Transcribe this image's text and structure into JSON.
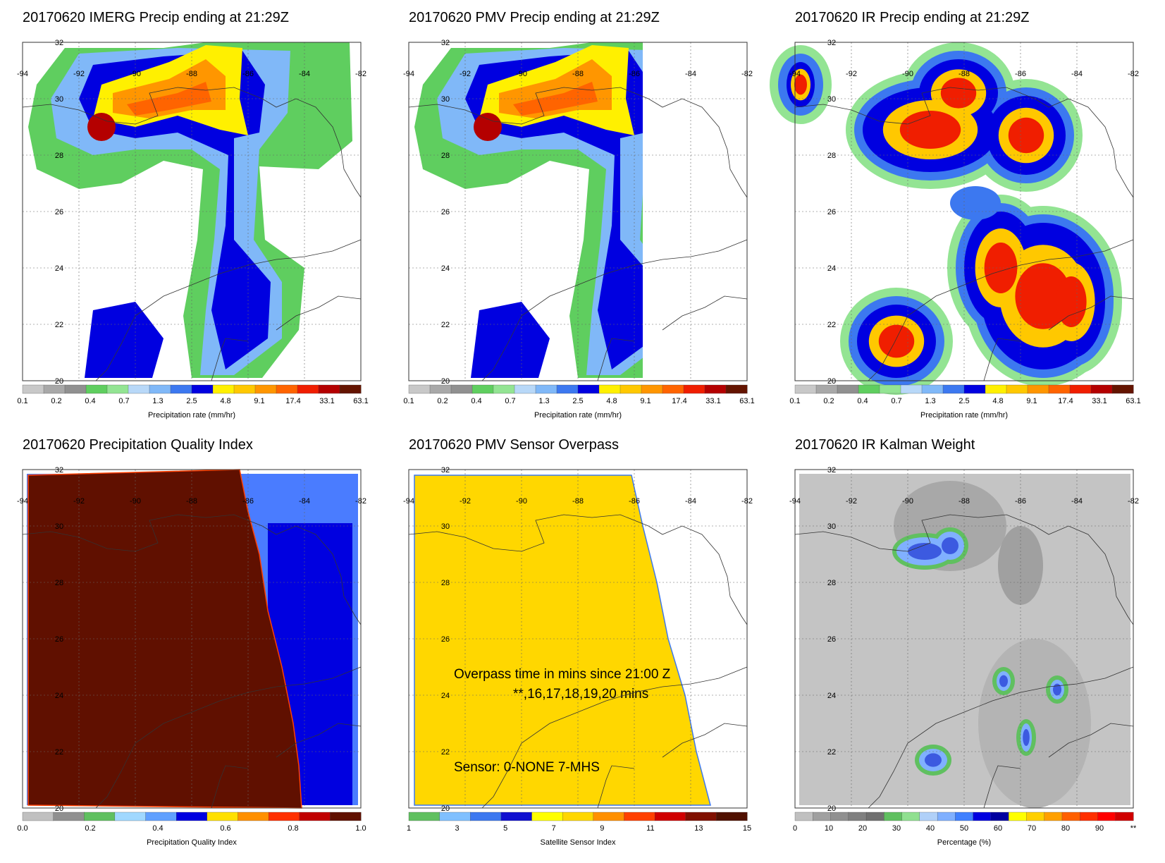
{
  "colorbars": {
    "precip": {
      "colors": [
        "#c8c8c8",
        "#a8a8a8",
        "#909090",
        "#5fce5f",
        "#93e493",
        "#b8d8f8",
        "#80b8f8",
        "#3c78f0",
        "#0000e0",
        "#fff000",
        "#ffc800",
        "#ff9600",
        "#ff6400",
        "#f01e00",
        "#b40000",
        "#641400"
      ],
      "labels": [
        "0.1",
        "0.2",
        "0.4",
        "0.7",
        "1.3",
        "2.5",
        "4.8",
        "9.1",
        "17.4",
        "33.1",
        "63.1"
      ],
      "title": "Precipitation rate (mm/hr)"
    },
    "quality": {
      "colors": [
        "#c0c0c0",
        "#909090",
        "#60c060",
        "#a0d8ff",
        "#60a0ff",
        "#0000e0",
        "#ffe000",
        "#ff9000",
        "#ff3000",
        "#c00000",
        "#601000"
      ],
      "labels": [
        "0.0",
        "0.2",
        "0.4",
        "0.6",
        "0.8",
        "1.0"
      ],
      "title": "Precipitation Quality Index"
    },
    "sensor": {
      "colors": [
        "#60c060",
        "#80c0ff",
        "#3c78f0",
        "#1010d0",
        "#ffff00",
        "#ffd700",
        "#ff9000",
        "#ff4000",
        "#d00000",
        "#801000",
        "#501000"
      ],
      "labels": [
        "1",
        "3",
        "5",
        "7",
        "9",
        "11",
        "13",
        "15"
      ],
      "title": "Satellite Sensor Index"
    },
    "percent": {
      "colors": [
        "#c0c0c0",
        "#a0a0a0",
        "#909090",
        "#808080",
        "#707070",
        "#60c060",
        "#90e090",
        "#b0d0f8",
        "#80b0ff",
        "#4080ff",
        "#0000e0",
        "#0000a0",
        "#ffff00",
        "#ffd000",
        "#ffa000",
        "#ff6000",
        "#ff3000",
        "#ff0000",
        "#d00000"
      ],
      "labels": [
        "0",
        "10",
        "20",
        "30",
        "40",
        "50",
        "60",
        "70",
        "80",
        "90",
        "**"
      ],
      "title": "Percentage (%)"
    }
  },
  "axes": {
    "lon_labels": [
      "-94",
      "-92",
      "-90",
      "-88",
      "-86",
      "-84",
      "-82"
    ],
    "lat_labels": [
      "20",
      "22",
      "24",
      "26",
      "28",
      "30",
      "32"
    ]
  },
  "panels": [
    {
      "id": "imerg",
      "title": "20170620 IMERG Precip ending at 21:29Z",
      "colorbar": "precip"
    },
    {
      "id": "pmv",
      "title": "20170620 PMV Precip ending at 21:29Z",
      "colorbar": "precip"
    },
    {
      "id": "ir",
      "title": "20170620 IR Precip ending at 21:29Z",
      "colorbar": "precip"
    },
    {
      "id": "quality",
      "title": "20170620 Precipitation Quality Index",
      "colorbar": "quality"
    },
    {
      "id": "overpass",
      "title": "20170620 PMV Sensor Overpass",
      "colorbar": "sensor",
      "annotations": [
        "Overpass time in mins since 21:00 Z",
        "**,16,17,18,19,20 mins",
        "Sensor:   0-NONE  7-MHS"
      ]
    },
    {
      "id": "kalman",
      "title": "20170620 IR Kalman Weight",
      "colorbar": "percent"
    }
  ]
}
